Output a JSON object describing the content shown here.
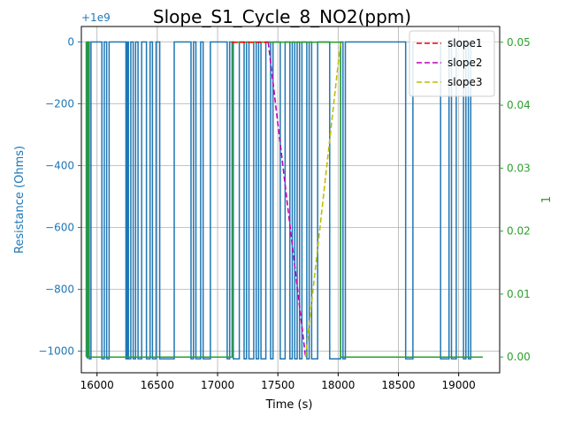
{
  "chart_data": {
    "type": "line",
    "title": "Slope_S1_Cycle_8_NO2(ppm)",
    "xlabel": "Time (s)",
    "ylabel_left": "Resistance (Ohms)",
    "ylabel_right": "1",
    "left_offset_label": "+1e9",
    "xlim": [
      15870,
      19340
    ],
    "ylim_left": [
      -1070,
      50
    ],
    "ylim_right": [
      -0.0025,
      0.0525
    ],
    "x_ticks": [
      16000,
      16500,
      17000,
      17500,
      18000,
      18500,
      19000
    ],
    "y_left_ticks": [
      0,
      -200,
      -400,
      -600,
      -800,
      -1000
    ],
    "y_right_ticks": [
      0.0,
      0.01,
      0.02,
      0.03,
      0.04,
      0.05
    ],
    "y_right_tick_labels": [
      "0.00",
      "0.01",
      "0.02",
      "0.03",
      "0.04",
      "0.05"
    ],
    "grid": true,
    "legend_position": "top-right",
    "colors": {
      "resistance": "#1f77b4",
      "concentration": "#2ca02c",
      "slope1": "#ff0000",
      "slope2": "#bf00bf",
      "slope3": "#bfbf00"
    },
    "series": [
      {
        "axis": "left",
        "style": "solid",
        "color": "#1f77b4",
        "x": [
          15920,
          15920,
          15935,
          15935,
          15950,
          15950,
          16040,
          16040,
          16060,
          16060,
          16080,
          16080,
          16100,
          16100,
          16240,
          16240,
          16250,
          16250,
          16260,
          16260,
          16280,
          16280,
          16300,
          16300,
          16320,
          16320,
          16340,
          16340,
          16370,
          16370,
          16410,
          16410,
          16440,
          16440,
          16460,
          16460,
          16490,
          16490,
          16520,
          16520,
          16640,
          16640,
          16780,
          16780,
          16800,
          16800,
          16820,
          16820,
          16860,
          16860,
          16880,
          16880,
          16940,
          16940,
          17080,
          17080,
          17100,
          17100,
          17130,
          17130,
          17180,
          17180,
          17220,
          17220,
          17240,
          17240,
          17260,
          17260,
          17300,
          17300,
          17320,
          17320,
          17340,
          17340,
          17360,
          17360,
          17400,
          17400,
          17440,
          17440,
          17460,
          17460,
          17520,
          17520,
          17560,
          17560,
          17600,
          17600,
          17620,
          17620,
          17640,
          17640,
          17660,
          17660,
          17680,
          17680,
          17700,
          17700,
          17740,
          17740,
          17760,
          17760,
          17780,
          17780,
          17830,
          17830,
          17930,
          17930,
          18020,
          18020,
          18040,
          18040,
          18060,
          18060,
          18560,
          18560,
          18620,
          18620,
          18850,
          18850,
          18920,
          18920,
          18940,
          18940,
          18980,
          18980,
          19040,
          19040,
          19060,
          19060,
          19080,
          19080,
          19100,
          19100
        ],
        "y": [
          -1025,
          0,
          0,
          -1025,
          -1025,
          0,
          0,
          -1025,
          -1025,
          0,
          0,
          -1025,
          -1025,
          0,
          0,
          -1025,
          -1025,
          0,
          0,
          -1025,
          -1025,
          0,
          0,
          -1025,
          -1025,
          0,
          0,
          -1025,
          -1025,
          0,
          0,
          -1025,
          -1025,
          0,
          0,
          -1025,
          -1025,
          0,
          0,
          -1025,
          -1025,
          0,
          0,
          -1025,
          -1025,
          0,
          0,
          -1025,
          -1025,
          0,
          0,
          -1025,
          -1025,
          0,
          0,
          -1025,
          -1025,
          0,
          0,
          -1025,
          -1025,
          0,
          0,
          -1025,
          -1025,
          0,
          0,
          -1025,
          -1025,
          0,
          0,
          -1025,
          -1025,
          0,
          0,
          -1025,
          -1025,
          0,
          0,
          -1025,
          -1025,
          0,
          0,
          -1025,
          -1025,
          0,
          0,
          -1025,
          -1025,
          0,
          0,
          -1025,
          -1025,
          0,
          0,
          -1025,
          -1025,
          0,
          0,
          -1025,
          -1025,
          0,
          0,
          -1025,
          -1025,
          0,
          0,
          -1025,
          -1025,
          0,
          0,
          -1025,
          -1025,
          0,
          0,
          -1025,
          -1025,
          0,
          0,
          -1025,
          -1025,
          0,
          0,
          -1025,
          -1025,
          0,
          0,
          -1025,
          -1025,
          0,
          0,
          -1025,
          -1025,
          0
        ]
      },
      {
        "axis": "right",
        "style": "solid",
        "color": "#2ca02c",
        "x": [
          15910,
          15910,
          15930,
          15930,
          17120,
          17120,
          18020,
          18020,
          19200
        ],
        "y": [
          0.0,
          0.05,
          0.05,
          0.0,
          0.0,
          0.05,
          0.05,
          0.0,
          0.0
        ]
      },
      {
        "name": "slope1",
        "axis": "right",
        "style": "dashed",
        "color": "#ff0000",
        "x": [
          17120,
          17420
        ],
        "y": [
          0.05,
          0.05
        ]
      },
      {
        "name": "slope2",
        "axis": "right",
        "style": "dashed",
        "color": "#bf00bf",
        "x": [
          17420,
          17730
        ],
        "y": [
          0.05,
          0.0
        ]
      },
      {
        "name": "slope3",
        "axis": "right",
        "style": "dashed",
        "color": "#bfbf00",
        "x": [
          17730,
          18020
        ],
        "y": [
          0.0,
          0.05
        ]
      }
    ]
  }
}
